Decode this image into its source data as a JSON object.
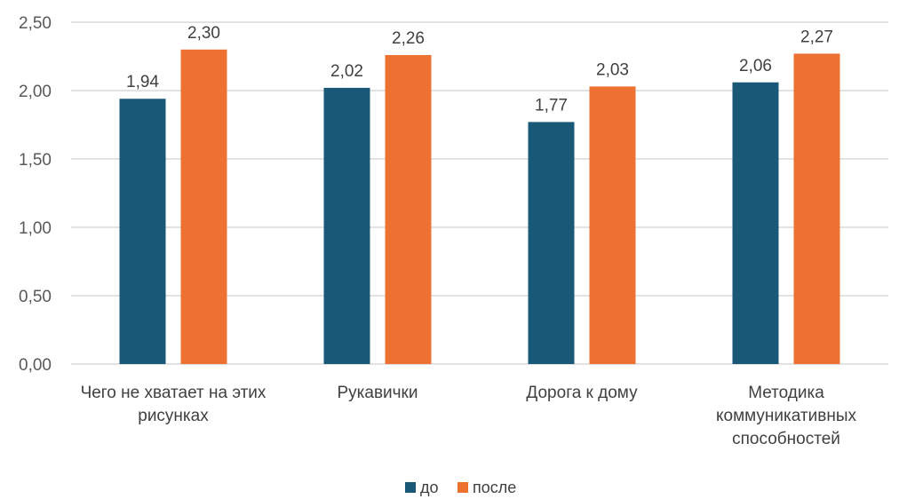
{
  "chart_data": {
    "type": "bar",
    "categories": [
      [
        "Чего не хватает на этих",
        "рисунках"
      ],
      [
        "Рукавички"
      ],
      [
        "Дорога к дому"
      ],
      [
        "Методика",
        "коммуникативных",
        "способностей"
      ]
    ],
    "series": [
      {
        "name": "до",
        "color": "#1a5878",
        "values": [
          1.94,
          2.02,
          1.77,
          2.06
        ],
        "labels": [
          "1,94",
          "2,02",
          "1,77",
          "2,06"
        ]
      },
      {
        "name": "после",
        "color": "#ed7231",
        "values": [
          2.3,
          2.26,
          2.03,
          2.27
        ],
        "labels": [
          "2,30",
          "2,26",
          "2,03",
          "2,27"
        ]
      }
    ],
    "yticks": [
      {
        "value": 0,
        "label": "0,00"
      },
      {
        "value": 0.5,
        "label": "0,50"
      },
      {
        "value": 1.0,
        "label": "1,00"
      },
      {
        "value": 1.5,
        "label": "1,50"
      },
      {
        "value": 2.0,
        "label": "2,00"
      },
      {
        "value": 2.5,
        "label": "2,50"
      }
    ],
    "ylim": [
      0,
      2.5
    ],
    "grid": true,
    "legend_position": "bottom"
  }
}
